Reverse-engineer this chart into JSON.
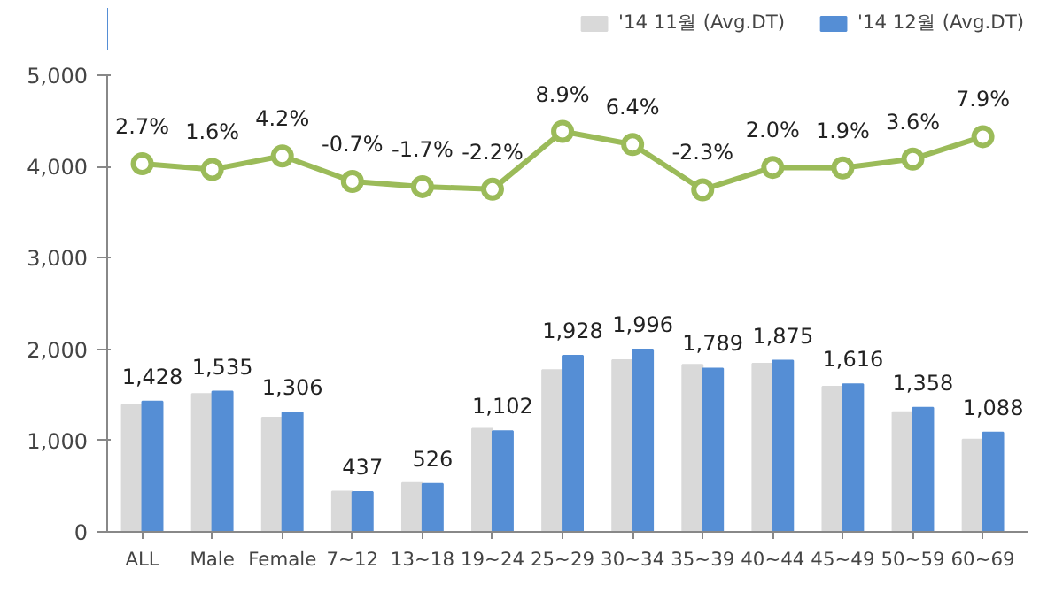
{
  "chart_data": {
    "type": "bar",
    "categories": [
      "ALL",
      "Male",
      "Female",
      "7~12",
      "13~18",
      "19~24",
      "25~29",
      "30~34",
      "35~39",
      "40~44",
      "45~49",
      "50~59",
      "60~69"
    ],
    "series": [
      {
        "name": "'14 11월 (Avg.DT)",
        "color": "#d9d9d9",
        "values": [
          1390,
          1510,
          1250,
          440,
          535,
          1130,
          1770,
          1880,
          1830,
          1840,
          1590,
          1310,
          1010
        ]
      },
      {
        "name": "'14 12월 (Avg.DT)",
        "color": "#558ed5",
        "values": [
          1428,
          1535,
          1306,
          437,
          526,
          1102,
          1928,
          1996,
          1789,
          1875,
          1616,
          1358,
          1088
        ],
        "value_labels": [
          "1,428",
          "1,535",
          "1,306",
          "437",
          "526",
          "1,102",
          "1,928",
          "1,996",
          "1,789",
          "1,875",
          "1,616",
          "1,358",
          "1,088"
        ]
      },
      {
        "type": "line",
        "axis": "y2",
        "color": "#9bbb59",
        "marker": "circle",
        "values": [
          2.7,
          1.6,
          4.2,
          -0.7,
          -1.7,
          -2.2,
          8.9,
          6.4,
          -2.3,
          2.0,
          1.9,
          3.6,
          7.9
        ],
        "value_labels": [
          "2.7%",
          "1.6%",
          "4.2%",
          "-0.7%",
          "-1.7%",
          "-2.2%",
          "8.9%",
          "6.4%",
          "-2.3%",
          "2.0%",
          "1.9%",
          "3.6%",
          "7.9%"
        ]
      }
    ],
    "ylim": [
      0,
      5000
    ],
    "yticks": [
      {
        "value": 0,
        "label": "0"
      },
      {
        "value": 1000,
        "label": "1,000"
      },
      {
        "value": 2000,
        "label": "2,000"
      },
      {
        "value": 3000,
        "label": "3,000"
      },
      {
        "value": 4000,
        "label": "4,000"
      },
      {
        "value": 5000,
        "label": "5,000"
      }
    ],
    "y2lim": [
      -68,
      19.7
    ],
    "tick_labels": "xy",
    "legend": "top right",
    "grid": false
  }
}
